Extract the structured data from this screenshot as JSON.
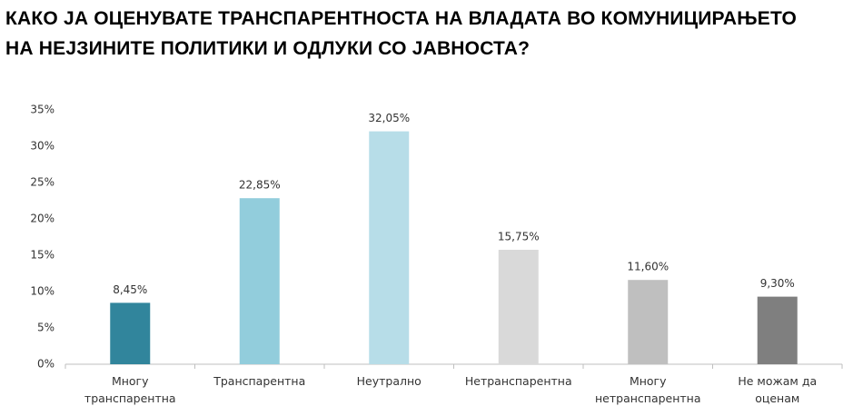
{
  "chart_data": {
    "type": "bar",
    "title": "КАКО ЈА ОЦЕНУВАТЕ ТРАНСПАРЕНТНОСТА НА ВЛАДАТА ВО КОМУНИЦИРАЊЕТО НА НЕЈЗИНИТЕ ПОЛИТИКИ И ОДЛУКИ СО ЈАВНОСТА?",
    "categories": [
      "Многу транспарентна",
      "Транспарентна",
      "Неутрално",
      "Нетранспарентна",
      "Многу нетранспарентна",
      "Не можам да оценам"
    ],
    "values": [
      8.45,
      22.85,
      32.05,
      15.75,
      11.6,
      9.3
    ],
    "value_labels": [
      "8,45%",
      "22,85%",
      "32,05%",
      "15,75%",
      "11,60%",
      "9,30%"
    ],
    "colors": [
      "#31859c",
      "#92cddc",
      "#b7dde8",
      "#d9d9d9",
      "#bfbfbf",
      "#7f7f7f"
    ],
    "ylim": [
      0,
      35
    ],
    "yticks": [
      {
        "value": 0,
        "label": "0%"
      },
      {
        "value": 5,
        "label": "5%"
      },
      {
        "value": 10,
        "label": "10%"
      },
      {
        "value": 15,
        "label": "15%"
      },
      {
        "value": 20,
        "label": "20%"
      },
      {
        "value": 25,
        "label": "25%"
      },
      {
        "value": 30,
        "label": "30%"
      },
      {
        "value": 35,
        "label": "35%"
      }
    ],
    "grid": false
  }
}
